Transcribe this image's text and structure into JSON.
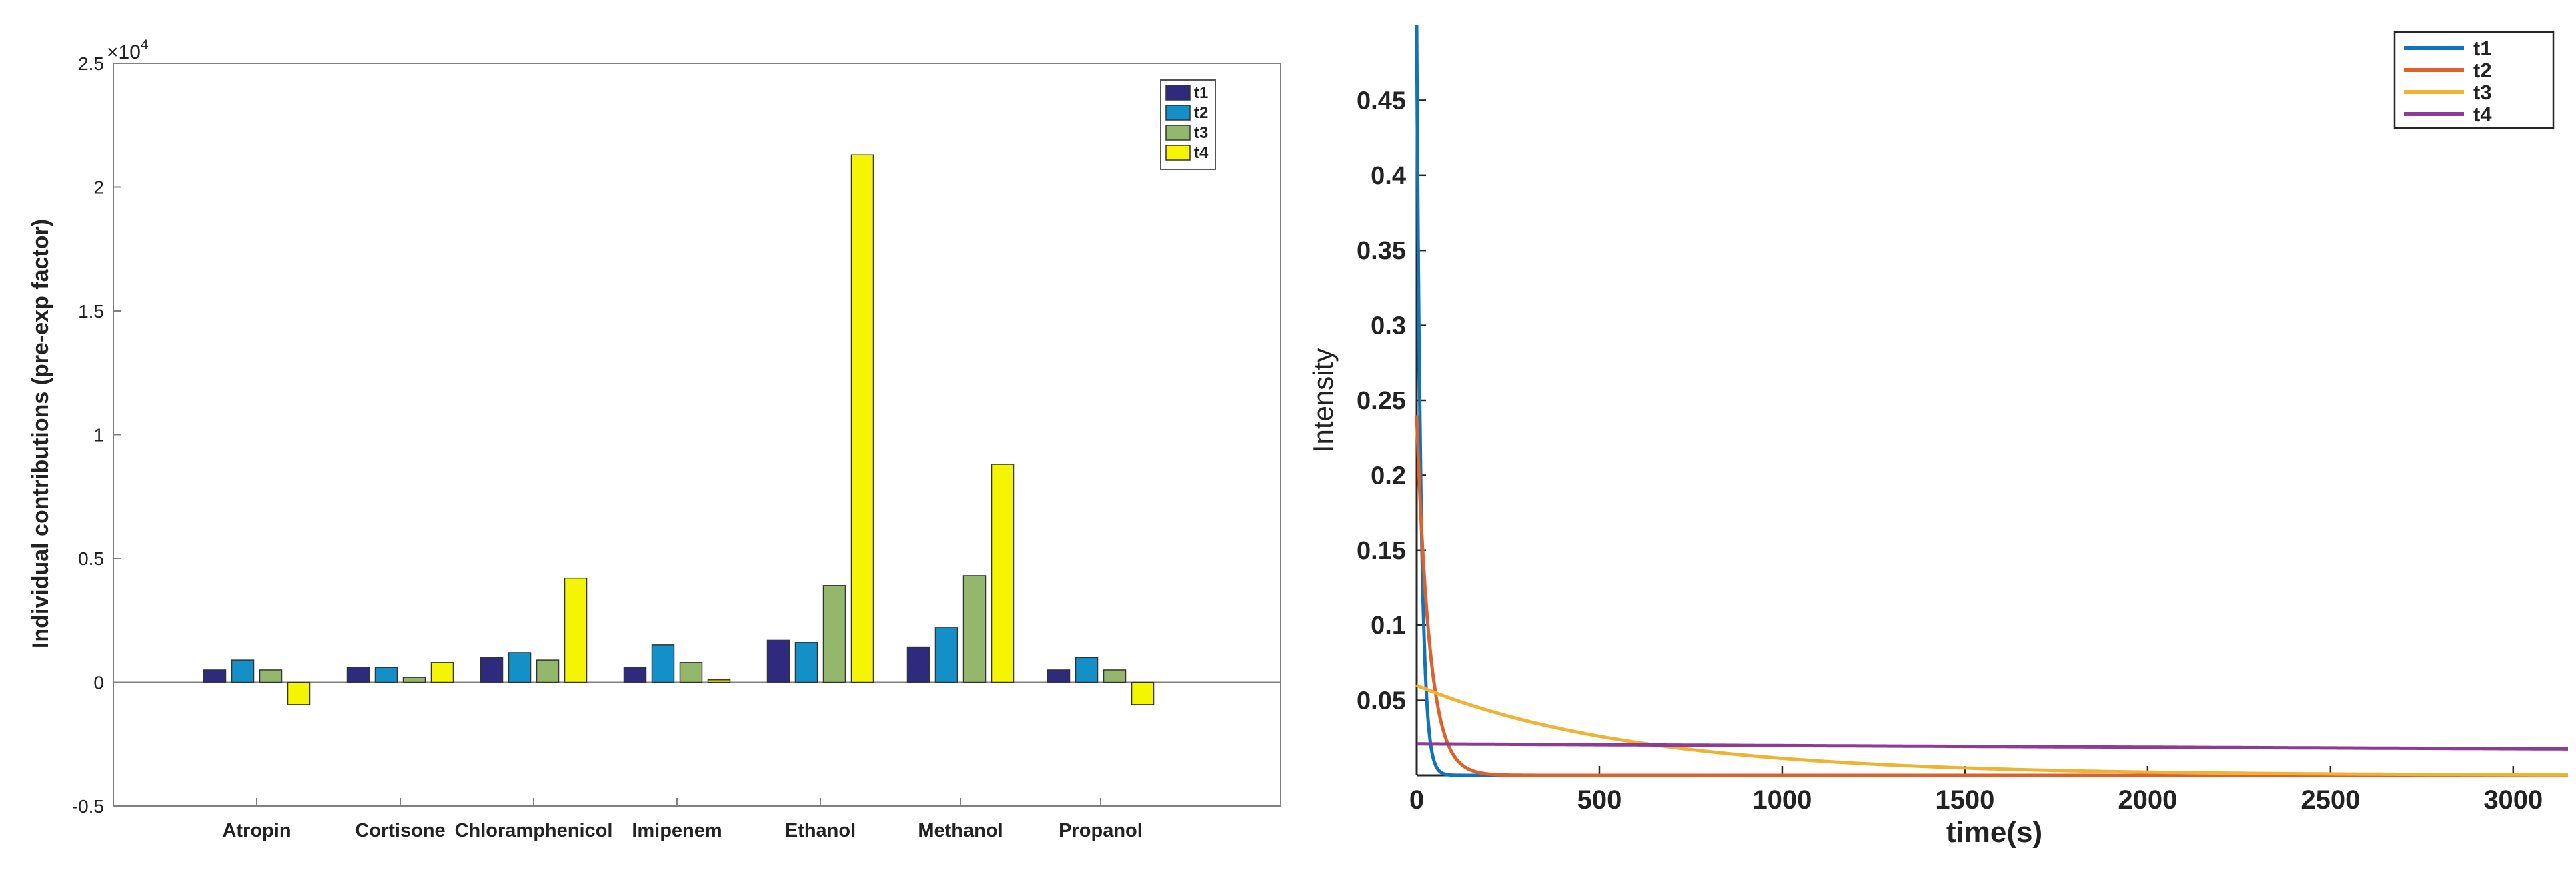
{
  "chart_data": [
    {
      "type": "bar",
      "title": "",
      "xlabel": "",
      "ylabel": "Individual contributions (pre-exp factor)",
      "y_exponent_label": "×10",
      "y_exponent_power": "4",
      "ylim": [
        -0.5,
        2.5
      ],
      "yticks": [
        -0.5,
        0,
        0.5,
        1,
        1.5,
        2,
        2.5
      ],
      "ytick_labels": [
        "-0.5",
        "0",
        "0.5",
        "1",
        "1.5",
        "2",
        "2.5"
      ],
      "categories": [
        "Atropin",
        "Cortisone",
        "Chloramphenicol",
        "Imipenem",
        "Ethanol",
        "Methanol",
        "Propanol"
      ],
      "series": [
        {
          "name": "t1",
          "color": "#2e2a7e",
          "values": [
            0.05,
            0.06,
            0.1,
            0.06,
            0.17,
            0.14,
            0.05
          ]
        },
        {
          "name": "t2",
          "color": "#1490c8",
          "values": [
            0.09,
            0.06,
            0.12,
            0.15,
            0.16,
            0.22,
            0.1
          ]
        },
        {
          "name": "t3",
          "color": "#93b86b",
          "values": [
            0.05,
            0.02,
            0.09,
            0.08,
            0.39,
            0.43,
            0.05
          ]
        },
        {
          "name": "t4",
          "color": "#f5f500",
          "values": [
            -0.09,
            0.08,
            0.42,
            0.01,
            2.13,
            0.88,
            -0.09
          ]
        }
      ],
      "legend_position": "top-right"
    },
    {
      "type": "line",
      "title": "",
      "xlabel": "time(s)",
      "ylabel": "Intensity",
      "xlim": [
        0,
        3150
      ],
      "ylim": [
        0,
        0.5
      ],
      "xticks": [
        0,
        500,
        1000,
        1500,
        2000,
        2500,
        3000
      ],
      "xtick_labels": [
        "0",
        "500",
        "1000",
        "1500",
        "2000",
        "2500",
        "3000"
      ],
      "yticks": [
        0.05,
        0.1,
        0.15,
        0.2,
        0.25,
        0.3,
        0.35,
        0.4,
        0.45
      ],
      "ytick_labels": [
        "0.05",
        "0.1",
        "0.15",
        "0.2",
        "0.25",
        "0.3",
        "0.35",
        "0.4",
        "0.45"
      ],
      "series": [
        {
          "name": "t1",
          "color": "#0f74bd",
          "amplitude": 0.5,
          "tau": 12
        },
        {
          "name": "t2",
          "color": "#e0602a",
          "amplitude": 0.24,
          "tau": 35
        },
        {
          "name": "t3",
          "color": "#f0b233",
          "amplitude": 0.06,
          "tau": 600
        },
        {
          "name": "t4",
          "color": "#8e3a96",
          "amplitude": 0.021,
          "tau": 18000
        }
      ],
      "legend_position": "top-right"
    }
  ]
}
